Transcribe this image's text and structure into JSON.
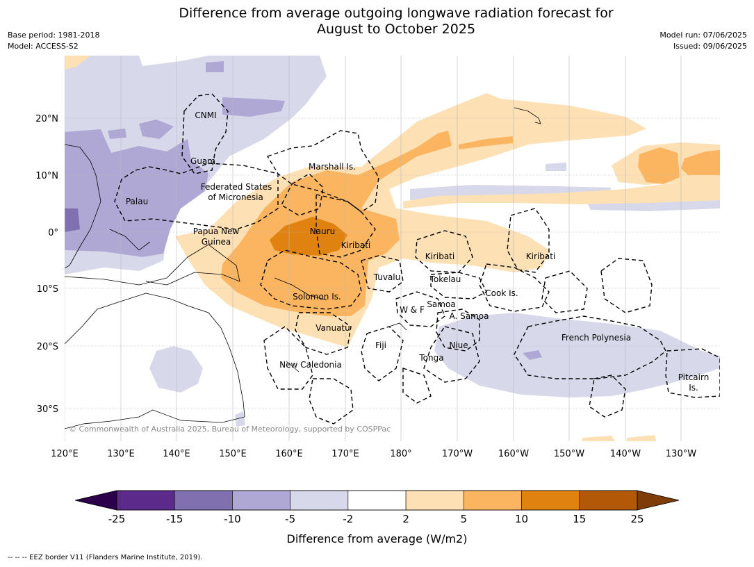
{
  "title_line1": "Difference from average outgoing longwave radiation forecast for",
  "title_line2": "August to October 2025",
  "base_period": "Base period: 1981-2018",
  "model": "Model: ACCESS-S2",
  "model_run": "Model run: 07/06/2025",
  "issued": "Issued: 09/06/2025",
  "copyright": "© Commonwealth of Australia 2025, Bureau of Meteorology, supported by COSPPac",
  "lon_ticks": [
    "120°E",
    "130°E",
    "140°E",
    "150°E",
    "160°E",
    "170°E",
    "180°",
    "170°W",
    "160°W",
    "150°W",
    "140°W",
    "130°W"
  ],
  "lat_ticks": [
    "20°N",
    "10°N",
    "0°",
    "10°S",
    "20°S",
    "30°S"
  ],
  "region_labels": {
    "cnmi": "CNMI",
    "guam": "Guam",
    "marshall": "Marshall Is.",
    "fsm1": "Federated States",
    "fsm2": "of Micronesia",
    "palau": "Palau",
    "png1": "Papua New",
    "png2": "Guinea",
    "nauru": "Nauru",
    "kiribati_w": "Kiribati",
    "kiribati_c": "Kiribati",
    "kiribati_e": "Kiribati",
    "tuvalu": "Tuvalu",
    "tokelau": "Tokelau",
    "cook": "Cook Is.",
    "solomon": "Solomon Is.",
    "samoa": "Samoa",
    "wf": "W & F",
    "asamoa": "A. Samoa",
    "vanuatu": "Vanuatu",
    "fiji": "Fiji",
    "niue": "Niue",
    "tonga": "Tonga",
    "frenchpoly": "French Polynesia",
    "newcal": "New Caledonia",
    "pitcairn1": "Pitcairn",
    "pitcairn2": "Is."
  },
  "colorbar": {
    "ticks": [
      "-25",
      "-15",
      "-10",
      "-5",
      "-2",
      "2",
      "5",
      "10",
      "15",
      "25"
    ],
    "colors": [
      "#5b2a8a",
      "#8070b0",
      "#b0a8d4",
      "#d7d8ea",
      "#ffffff",
      "#fde0b3",
      "#fbb560",
      "#e0820f",
      "#b35806"
    ],
    "under_color": "#2d004b",
    "over_color": "#7f3b08",
    "label": "Difference from average (W/m2)"
  },
  "footnote": "--  --  -- EEZ border V11 (Flanders Marine Institute, 2019)."
}
